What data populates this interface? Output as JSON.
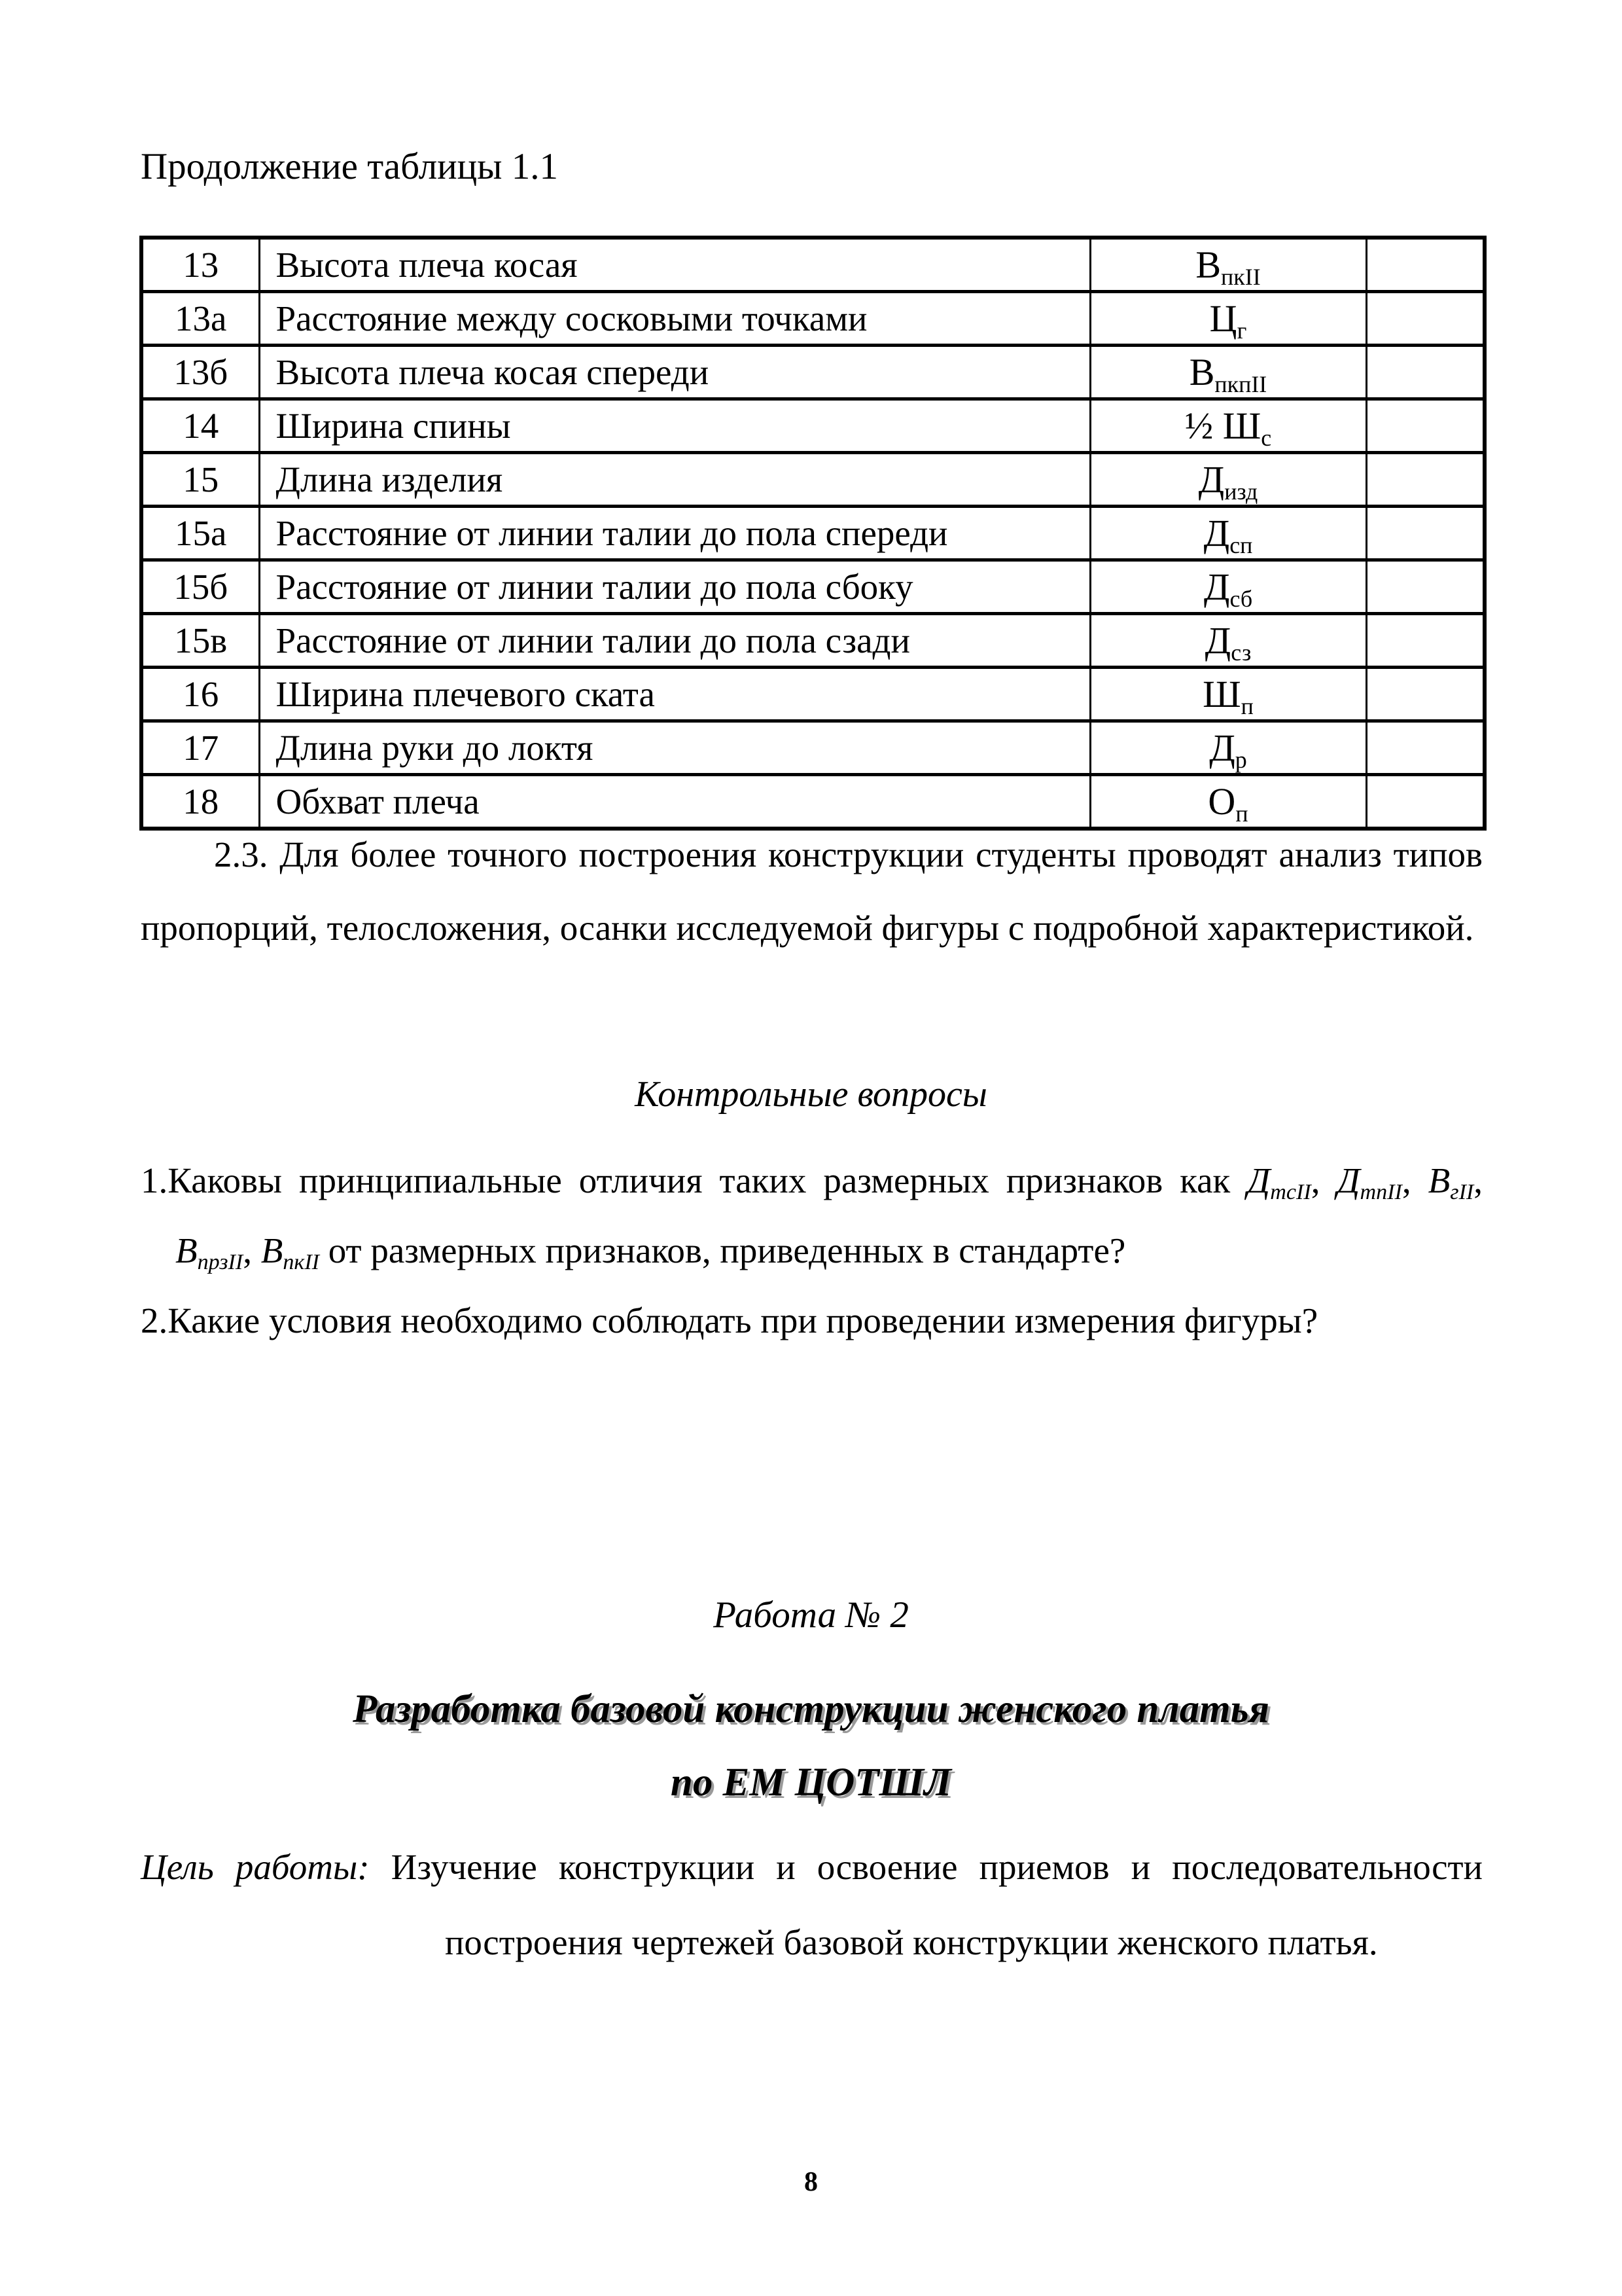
{
  "labels": {
    "continuation": "Продолжение таблицы 1.1"
  },
  "colors": {
    "text": "#000000",
    "background": "#ffffff",
    "title_shadow": "#9a9a9a"
  },
  "table": {
    "rows": [
      {
        "num": "13",
        "name": "Высота плеча косая",
        "sym_prefix": "",
        "sym_base": "В",
        "sym_sub": "пкII"
      },
      {
        "num": "13а",
        "name": "Расстояние между сосковыми точками",
        "sym_prefix": "",
        "sym_base": "Ц",
        "sym_sub": "г"
      },
      {
        "num": "13б",
        "name": "Высота плеча косая спереди",
        "sym_prefix": "",
        "sym_base": "В",
        "sym_sub": "пкпII"
      },
      {
        "num": "14",
        "name": "Ширина спины",
        "sym_prefix": "½ ",
        "sym_base": "Ш",
        "sym_sub": "с"
      },
      {
        "num": "15",
        "name": "Длина изделия",
        "sym_prefix": "",
        "sym_base": "Д",
        "sym_sub": "изд"
      },
      {
        "num": "15а",
        "name": "Расстояние от линии талии до пола спереди",
        "sym_prefix": "",
        "sym_base": "Д",
        "sym_sub": "сп"
      },
      {
        "num": "15б",
        "name": "Расстояние от линии талии до пола сбоку",
        "sym_prefix": "",
        "sym_base": "Д",
        "sym_sub": "сб"
      },
      {
        "num": "15в",
        "name": "Расстояние от линии талии до пола сзади",
        "sym_prefix": "",
        "sym_base": "Д",
        "sym_sub": "сз"
      },
      {
        "num": "16",
        "name": "Ширина плечевого ската",
        "sym_prefix": "",
        "sym_base": "Ш",
        "sym_sub": "п"
      },
      {
        "num": "17",
        "name": "Длина руки до локтя",
        "sym_prefix": "",
        "sym_base": "Д",
        "sym_sub": "р"
      },
      {
        "num": "18",
        "name": "Обхват плеча",
        "sym_prefix": "",
        "sym_base": "О",
        "sym_sub": "п"
      }
    ]
  },
  "paragraph_2_3": "2.3. Для более точного построения конструкции студенты проводят анализ типов пропорций, телосложения, осанки исследуемой фигуры с подробной характеристикой.",
  "questions": {
    "heading": "Контрольные вопросы",
    "items": [
      {
        "number": "1.",
        "segments": [
          {
            "text": "Каковы принципиальные отличия таких размерных признаков как "
          },
          {
            "text": "Д",
            "sub": "тсII",
            "italic": true
          },
          {
            "text": ", "
          },
          {
            "text": "Д",
            "sub": "тпII",
            "italic": true
          },
          {
            "text": ", "
          },
          {
            "text": "В",
            "sub": "гII",
            "italic": true
          },
          {
            "text": ", "
          },
          {
            "text": "В",
            "sub": "прзII",
            "italic": true
          },
          {
            "text": ", "
          },
          {
            "text": "В",
            "sub": "пкII",
            "italic": true
          },
          {
            "text": " от размерных признаков, приведенных в стандарте?"
          }
        ]
      },
      {
        "number": "2.",
        "segments": [
          {
            "text": "Какие условия необходимо соблюдать при проведении измерения фигуры?"
          }
        ]
      }
    ]
  },
  "work": {
    "heading": "Работа № 2",
    "title_line1": "Разработка базовой конструкции женского платья",
    "title_line2": "по ЕМ  ЦОТШЛ"
  },
  "goal": {
    "label": "Цель работы:",
    "text": " Изучение конструкции и освоение приемов и последовательности построения чертежей базовой конструкции женского платья."
  },
  "page_number": "8"
}
